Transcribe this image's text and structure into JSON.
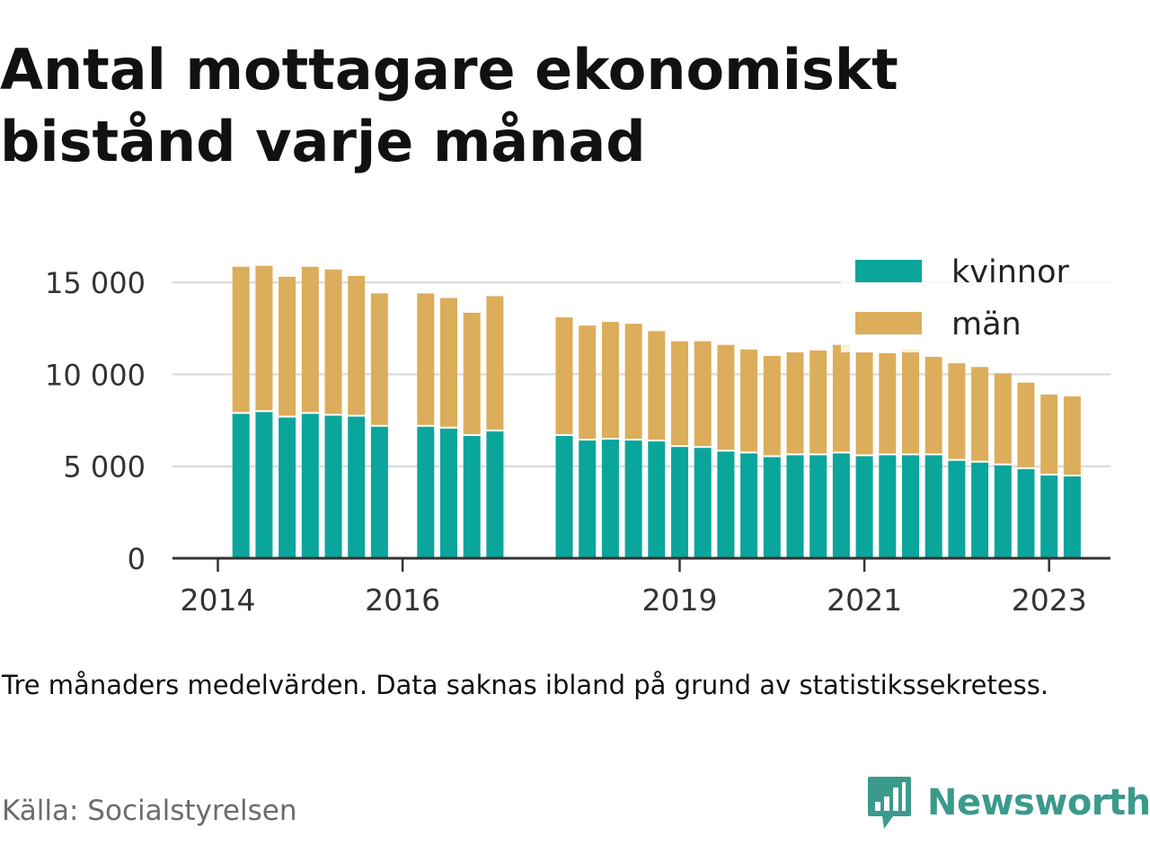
{
  "title": "Antal mottagare ekonomiskt bistånd varje månad",
  "note": "Tre månaders medelvärden. Data saknas ibland på grund av statistikssekretess.",
  "source": "Källa: Socialstyrelsen",
  "brand": {
    "name": "Newsworthy",
    "logo_icon": "newsworthy-bar-chart-icon"
  },
  "colors": {
    "kvinnor": "#0aa59b",
    "man": "#dcad5a",
    "grid": "#dddddd",
    "axis": "#333333",
    "brand": "#3a9a8c"
  },
  "chart_data": {
    "type": "bar",
    "stacked": true,
    "x_unit": "quarter",
    "x_ticks": [
      "2014",
      "2016",
      "2019",
      "2021",
      "2023"
    ],
    "y_ticks": [
      "0",
      "5 000",
      "10 000",
      "15 000"
    ],
    "ylim": [
      0,
      15500
    ],
    "grid": true,
    "legend": {
      "position": "top-right",
      "entries": [
        "kvinnor",
        "män"
      ]
    },
    "categories": [
      "2014Q2",
      "2014Q3",
      "2014Q4",
      "2015Q1",
      "2015Q2",
      "2015Q3",
      "2015Q4",
      "2016Q2",
      "2016Q3",
      "2016Q4",
      "2017Q1",
      "2017Q4",
      "2018Q1",
      "2018Q2",
      "2018Q3",
      "2018Q4",
      "2019Q1",
      "2019Q2",
      "2019Q3",
      "2019Q4",
      "2020Q1",
      "2020Q2",
      "2020Q3",
      "2020Q4",
      "2021Q1",
      "2021Q2",
      "2021Q3",
      "2021Q4",
      "2022Q1",
      "2022Q2",
      "2022Q3",
      "2022Q4",
      "2023Q1",
      "2023Q2"
    ],
    "series": [
      {
        "name": "kvinnor",
        "color": "#0aa59b",
        "values": [
          7850,
          7950,
          7650,
          7850,
          7750,
          7700,
          7150,
          7150,
          7050,
          6650,
          6900,
          6650,
          6400,
          6450,
          6400,
          6350,
          6050,
          6000,
          5800,
          5700,
          5500,
          5600,
          5600,
          5700,
          5550,
          5600,
          5600,
          5600,
          5300,
          5200,
          5050,
          4850,
          4500,
          4450
        ]
      },
      {
        "name": "män",
        "color": "#dcad5a",
        "values": [
          8000,
          7950,
          7650,
          8000,
          7950,
          7650,
          7250,
          7250,
          7100,
          6700,
          7350,
          6450,
          6250,
          6400,
          6350,
          6000,
          5750,
          5800,
          5800,
          5650,
          5500,
          5600,
          5700,
          5900,
          5650,
          5550,
          5750,
          5350,
          5300,
          5200,
          5000,
          4700,
          4400,
          4350
        ]
      }
    ]
  }
}
